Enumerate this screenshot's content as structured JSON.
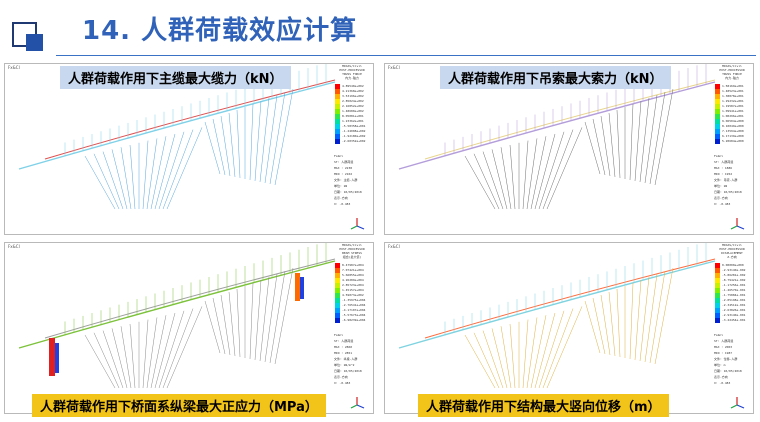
{
  "header": {
    "title": "14. 人群荷载效应计算"
  },
  "panels": [
    {
      "caption": "人群荷载作用下主缆最大缆力（kN）",
      "app_label": "Fx&Cl",
      "legend_header": [
        "MIDAS/Civil",
        "POST-PROCESSOR",
        "TRUSS FORCE",
        "内力-轴力"
      ],
      "legend_values": [
        "4.89540e+002",
        "4.21368e+002",
        "3.53196e+002",
        "2.85024e+002",
        "2.16852e+002",
        "1.48680e+002",
        "8.05081e+001",
        "1.23362e+001",
        "-5.58358e+001",
        "-1.24008e+002",
        "-1.92180e+002",
        "-2.60352e+002"
      ],
      "legend_info": [
        "Fx&Cl",
        "ST: 人群荷载",
        "MAX : 2238",
        "MIN : 2102",
        "文件: 主缆-人群",
        "单位: kN",
        "日期: 10/05/2018",
        "表示-方向",
        "X: -0.483"
      ],
      "colors": {
        "ribs": "#56a7e0",
        "cable": "#e05050",
        "deck": "#7fd1e8"
      }
    },
    {
      "caption": "人群荷载作用下吊索最大索力（kN）",
      "app_label": "Fx&Cl",
      "legend_header": [
        "MIDAS/Civil",
        "POST-PROCESSOR",
        "TRUSS FORCE",
        "内力-轴力"
      ],
      "legend_values": [
        "1.58169e+001",
        "1.48523e+001",
        "1.38878e+001",
        "1.29232e+001",
        "1.19587e+001",
        "1.09941e+001",
        "1.00296e+001",
        "9.06504e+000",
        "8.10049e+000",
        "7.13594e+000",
        "6.17139e+000",
        "5.20684e+000"
      ],
      "legend_info": [
        "Fx&Cl",
        "ST: 人群荷载",
        "MAX : 1886",
        "MIN : 1952",
        "文件: 吊索-人群",
        "单位: kN",
        "日期: 10/05/2018",
        "表示-方向",
        "X: -0.483"
      ],
      "colors": {
        "ribs": "#6f6f6f",
        "cable": "#e8d48a",
        "deck": "#b39ddb"
      }
    },
    {
      "caption": "人群荷载作用下桥面系纵梁最大正应力（MPa）",
      "app_label": "Fx&Cl",
      "legend_header": [
        "MIDAS/Civil",
        "POST-PROCESSOR",
        "BEAM STRESS",
        "组合(最大值)"
      ],
      "legend_values": [
        "8.47987e+004",
        "7.07421e+004",
        "5.66855e+004",
        "4.26289e+004",
        "2.85723e+004",
        "1.45157e+004",
        "4.59073e+002",
        "-1.35975e+004",
        "-2.76541e+004",
        "-4.17107e+004",
        "-5.57673e+004",
        "-6.98239e+004"
      ],
      "legend_info": [
        "Fx&Cl",
        "ST: 人群荷载",
        "MAX : 2860",
        "MIN : 2851",
        "文件: 纵梁-人群",
        "单位: kN/m^2",
        "日期: 10/05/2018",
        "表示-方向",
        "X: -0.483"
      ],
      "colors": {
        "ribs": "#8a8a8a",
        "cable": "#9e9e9e",
        "deck": "#7cc23a"
      }
    },
    {
      "caption": "人群荷载作用下结构最大竖向位移（m）",
      "app_label": "Fx&Cl",
      "legend_header": [
        "MIDAS/Civil",
        "POST-PROCESSOR",
        "DISPLACEMENT",
        "Z-方向"
      ],
      "legend_values": [
        "0.00000e+000",
        "-2.93140e-002",
        "-5.86281e-002",
        "-8.79421e-002",
        "-1.17256e-001",
        "-1.46570e-001",
        "-1.75884e-001",
        "-2.05198e-001",
        "-2.34512e-001",
        "-2.63826e-001",
        "-2.93140e-001",
        "-3.22454e-001"
      ],
      "legend_info": [
        "Fx&Cl",
        "ST: 人群荷载",
        "MAX : 2003",
        "MIN : 1987",
        "文件: 位移-人群",
        "单位: m",
        "日期: 10/05/2018",
        "表示-方向",
        "X: -0.483"
      ],
      "colors": {
        "ribs": "#e0b040",
        "cable": "#ff6b3d",
        "deck": "#7fd3e0"
      }
    }
  ],
  "legend_colors": [
    "#ff0000",
    "#ff5a00",
    "#ffb000",
    "#ffe800",
    "#c8f000",
    "#7ef000",
    "#2ee84a",
    "#00e0a0",
    "#00d0e8",
    "#00a0ff",
    "#0060ff",
    "#0020d0"
  ]
}
